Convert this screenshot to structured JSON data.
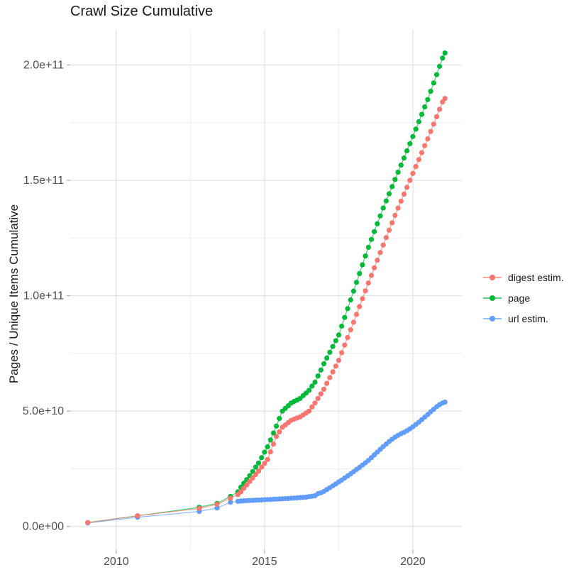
{
  "chart_data": {
    "type": "line",
    "title": "Crawl Size Cumulative",
    "xlabel": "",
    "ylabel": "Pages / Unique Items Cumulative",
    "values_unit": "1e9 (billions of pages / unique items)",
    "grid": true,
    "legend_position": "right",
    "xlim": [
      2008.45,
      2021.65
    ],
    "ylim": [
      -10.25,
      215.25
    ],
    "x_ticks": {
      "major": [
        2010,
        2015,
        2020
      ],
      "labels": [
        "2010",
        "2015",
        "2020"
      ],
      "minor": [
        2012.5,
        2017.5
      ]
    },
    "y_ticks": {
      "major": [
        0,
        50,
        100,
        150,
        200
      ],
      "labels": [
        "0.0e+00",
        "5.0e+10",
        "1.0e+11",
        "1.5e+11",
        "2.0e+11"
      ],
      "minor": [
        25,
        75,
        125,
        175
      ]
    },
    "x": [
      2009.04,
      2010.72,
      2012.8,
      2013.4,
      2013.85,
      2014.1,
      2014.2,
      2014.3,
      2014.4,
      2014.5,
      2014.6,
      2014.7,
      2014.8,
      2014.9,
      2015.0,
      2015.1,
      2015.2,
      2015.3,
      2015.4,
      2015.5,
      2015.6,
      2015.7,
      2015.8,
      2015.9,
      2016.0,
      2016.1,
      2016.2,
      2016.3,
      2016.4,
      2016.5,
      2016.6,
      2016.7,
      2016.8,
      2016.9,
      2017.0,
      2017.1,
      2017.2,
      2017.3,
      2017.4,
      2017.5,
      2017.6,
      2017.7,
      2017.8,
      2017.9,
      2018.0,
      2018.1,
      2018.2,
      2018.3,
      2018.4,
      2018.5,
      2018.6,
      2018.7,
      2018.8,
      2018.9,
      2019.0,
      2019.1,
      2019.2,
      2019.3,
      2019.4,
      2019.5,
      2019.6,
      2019.7,
      2019.8,
      2019.9,
      2020.0,
      2020.1,
      2020.2,
      2020.3,
      2020.4,
      2020.5,
      2020.6,
      2020.7,
      2020.8,
      2020.9,
      2021.0,
      2021.08
    ],
    "series": [
      {
        "name": "digest estim.",
        "color": "#F8766D",
        "values": [
          1.7,
          4.6,
          7.8,
          9.6,
          12.2,
          13.8,
          15.0,
          16.5,
          18.0,
          19.5,
          21.0,
          22.5,
          24.0,
          25.7,
          27.3,
          29.0,
          32.3,
          35.7,
          39.0,
          41.0,
          43.0,
          44.0,
          45.0,
          46.0,
          46.5,
          47.0,
          47.5,
          48.3,
          49.2,
          50.0,
          51.8,
          53.5,
          55.5,
          57.5,
          59.5,
          62.0,
          64.5,
          67.0,
          69.5,
          72.0,
          75.3,
          78.6,
          81.9,
          85.2,
          88.5,
          91.9,
          95.3,
          98.7,
          102.1,
          105.5,
          108.8,
          112.1,
          115.4,
          118.7,
          122.0,
          125.2,
          128.4,
          131.6,
          134.8,
          138.0,
          141.0,
          144.0,
          147.0,
          150.0,
          153.0,
          156.0,
          159.0,
          162.0,
          165.0,
          168.0,
          171.2,
          174.4,
          177.6,
          180.8,
          184.0,
          185.5
        ]
      },
      {
        "name": "page",
        "color": "#00BA38",
        "values": [
          1.7,
          4.6,
          8.3,
          10.0,
          13.0,
          15.0,
          17.0,
          18.7,
          20.3,
          22.0,
          23.8,
          25.7,
          27.5,
          29.8,
          32.2,
          34.5,
          37.5,
          40.5,
          43.5,
          46.8,
          50.0,
          51.2,
          52.3,
          53.5,
          54.2,
          54.8,
          55.5,
          56.7,
          57.8,
          59.0,
          60.8,
          62.5,
          65.2,
          67.8,
          70.5,
          73.0,
          75.5,
          78.0,
          80.5,
          83.0,
          86.8,
          90.6,
          94.4,
          98.2,
          102.0,
          105.8,
          109.6,
          113.4,
          117.2,
          121.0,
          124.4,
          127.8,
          131.2,
          134.6,
          138.0,
          141.1,
          144.2,
          147.3,
          150.4,
          153.5,
          156.6,
          159.7,
          162.8,
          165.9,
          169.0,
          172.2,
          175.4,
          178.6,
          181.8,
          185.0,
          188.6,
          192.2,
          195.8,
          199.4,
          203.0,
          205.2
        ]
      },
      {
        "name": "url estim.",
        "color": "#619CFF",
        "values": [
          1.5,
          4.0,
          6.5,
          8.0,
          10.5,
          10.9,
          11.0,
          11.1,
          11.2,
          11.25,
          11.3,
          11.4,
          11.45,
          11.5,
          11.6,
          11.65,
          11.7,
          11.8,
          11.85,
          11.9,
          12.0,
          12.05,
          12.1,
          12.2,
          12.3,
          12.4,
          12.5,
          12.6,
          12.7,
          12.9,
          13.1,
          13.3,
          14.2,
          14.6,
          15.2,
          16.0,
          16.8,
          17.6,
          18.4,
          19.3,
          20.1,
          21.0,
          21.9,
          22.8,
          23.7,
          24.7,
          25.6,
          26.6,
          27.6,
          28.6,
          29.8,
          31.0,
          32.2,
          33.4,
          34.6,
          35.7,
          36.8,
          37.8,
          38.7,
          39.5,
          40.2,
          40.8,
          41.5,
          42.3,
          43.2,
          44.2,
          45.2,
          46.3,
          47.4,
          48.5,
          49.7,
          50.8,
          51.9,
          52.8,
          53.5,
          53.9
        ]
      }
    ],
    "style": {
      "grid_major_color": "#e4e4e4",
      "grid_minor_color": "#eeeeee",
      "tick_color": "#b5b5b5",
      "background": "#ffffff",
      "point_radius": 3.6
    }
  }
}
